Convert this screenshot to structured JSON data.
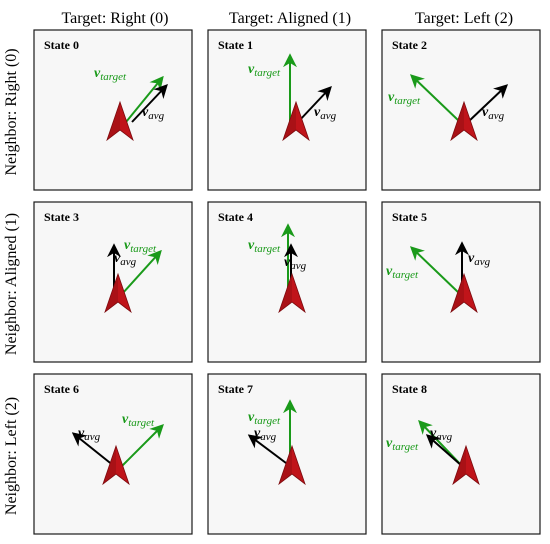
{
  "column_headers": [
    "Target: Right (0)",
    "Target: Aligned (1)",
    "Target: Left (2)"
  ],
  "row_headers": [
    "Neighbor: Right (0)",
    "Neighbor: Aligned (1)",
    "Neighbor: Left (2)"
  ],
  "vector_labels": {
    "target_main": "v",
    "target_sub": "target",
    "avg_main": "v",
    "avg_sub": "avg"
  },
  "colors": {
    "agent": "#c0141a",
    "agent_dark": "#7a0a0e",
    "target": "#1a9a1a",
    "avg": "#000000",
    "panel_fill": "#f7f7f7",
    "panel_border": "#1a1a1a"
  },
  "icons": [
    "agent-arrowhead-icon",
    "target-vector-arrow-icon",
    "avg-vector-arrow-icon"
  ],
  "states": [
    {
      "label": "State 0",
      "target": "Right",
      "neighbor": "Right"
    },
    {
      "label": "State 1",
      "target": "Aligned",
      "neighbor": "Right"
    },
    {
      "label": "State 2",
      "target": "Left",
      "neighbor": "Right"
    },
    {
      "label": "State 3",
      "target": "Right",
      "neighbor": "Aligned"
    },
    {
      "label": "State 4",
      "target": "Aligned",
      "neighbor": "Aligned"
    },
    {
      "label": "State 5",
      "target": "Left",
      "neighbor": "Aligned"
    },
    {
      "label": "State 6",
      "target": "Right",
      "neighbor": "Left"
    },
    {
      "label": "State 7",
      "target": "Aligned",
      "neighbor": "Left"
    },
    {
      "label": "State 8",
      "target": "Left",
      "neighbor": "Left"
    }
  ]
}
